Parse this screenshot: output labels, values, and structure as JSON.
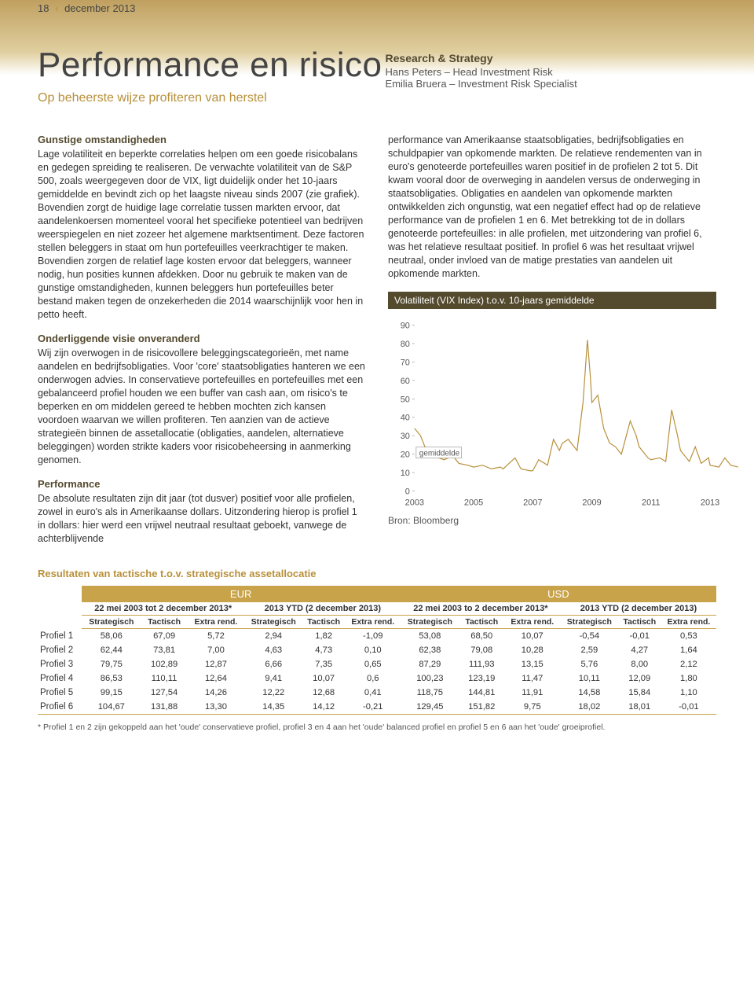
{
  "page_tag": {
    "num": "18",
    "date": "december 2013"
  },
  "header": {
    "title": "Performance en risico",
    "subtitle": "Op beheerste wijze profiteren van herstel",
    "rs_label": "Research & Strategy",
    "author1": "Hans Peters – Head Investment Risk",
    "author2": "Emilia Bruera – Investment Risk Specialist"
  },
  "left": {
    "h1": "Gunstige omstandigheden",
    "p1": "Lage volatiliteit en beperkte correlaties helpen om een goede risicobalans en gedegen spreiding te realiseren. De verwachte volatiliteit van de S&P 500, zoals weergegeven door de VIX, ligt duidelijk onder het 10-jaars gemiddelde en bevindt zich op het laagste niveau sinds 2007 (zie grafiek). Bovendien zorgt de huidige lage correlatie tussen markten ervoor, dat aandelenkoersen momenteel vooral het specifieke potentieel van bedrijven weerspiegelen en niet zozeer het algemene marktsentiment. Deze factoren stellen beleggers in staat om hun portefeuilles veerkrachtiger te maken. Bovendien zorgen de relatief lage kosten ervoor dat beleggers, wanneer nodig, hun posities kunnen afdekken. Door nu gebruik te maken van de gunstige omstandigheden, kunnen beleggers hun portefeuilles beter bestand maken tegen de onzekerheden die 2014 waarschijnlijk voor hen in petto heeft.",
    "h2": "Onderliggende visie onveranderd",
    "p2": "Wij zijn overwogen in de risicovollere beleggingscategorieën, met name aandelen en bedrijfsobligaties. Voor 'core' staatsobligaties hanteren we een onderwogen advies. In conservatieve portefeuilles en portefeuilles met een gebalanceerd profiel houden we een buffer van cash aan, om risico's te beperken en om middelen gereed te hebben mochten zich kansen voordoen waarvan we willen profiteren. Ten aanzien van de actieve strategieën binnen de assetallocatie (obligaties, aandelen, alternatieve beleggingen) worden strikte kaders voor risicobeheersing in aanmerking genomen.",
    "h3": "Performance",
    "p3": "De absolute resultaten zijn dit jaar (tot dusver) positief voor alle profielen, zowel in euro's als in Amerikaanse dollars. Uitzondering hierop is profiel 1 in dollars: hier werd een vrijwel neutraal resultaat geboekt, vanwege de achterblijvende"
  },
  "right": {
    "p1": "performance van Amerikaanse staatsobligaties, bedrijfsobligaties en schuldpapier van opkomende markten. De relatieve rendementen van in euro's genoteerde portefeuilles waren positief in de profielen 2 tot 5. Dit kwam vooral door de overweging in aandelen versus de onderweging in staatsobligaties. Obligaties en aandelen van opkomende markten ontwikkelden zich ongunstig, wat een negatief effect had op de relatieve performance van de profielen 1 en 6. Met betrekking tot de in dollars genoteerde portefeuilles: in alle profielen, met uitzondering van profiel 6, was het relatieve resultaat positief. In profiel 6 was het resultaat vrijwel neutraal, onder invloed van de matige prestaties van aandelen uit opkomende markten."
  },
  "chart": {
    "title": "Volatiliteit (VIX Index) t.o.v. 10-jaars gemiddelde",
    "ylim": [
      0,
      90
    ],
    "ytick_step": 10,
    "xticks": [
      "2003",
      "2005",
      "2007",
      "2009",
      "2011",
      "2013"
    ],
    "x_range": [
      2003,
      2013
    ],
    "avg_label": "gemiddelde",
    "avg_value": 20,
    "line_color": "#b8903a",
    "background_color": "#ffffff",
    "source": "Bron: Bloomberg",
    "series": [
      {
        "x": 2003.0,
        "y": 34
      },
      {
        "x": 2003.2,
        "y": 30
      },
      {
        "x": 2003.4,
        "y": 22
      },
      {
        "x": 2003.6,
        "y": 20
      },
      {
        "x": 2003.8,
        "y": 18
      },
      {
        "x": 2004.0,
        "y": 17
      },
      {
        "x": 2004.3,
        "y": 19
      },
      {
        "x": 2004.5,
        "y": 15
      },
      {
        "x": 2004.8,
        "y": 14
      },
      {
        "x": 2005.0,
        "y": 13
      },
      {
        "x": 2005.3,
        "y": 14
      },
      {
        "x": 2005.6,
        "y": 12
      },
      {
        "x": 2005.9,
        "y": 13
      },
      {
        "x": 2006.0,
        "y": 12
      },
      {
        "x": 2006.4,
        "y": 18
      },
      {
        "x": 2006.6,
        "y": 12
      },
      {
        "x": 2006.9,
        "y": 11
      },
      {
        "x": 2007.0,
        "y": 11
      },
      {
        "x": 2007.2,
        "y": 17
      },
      {
        "x": 2007.5,
        "y": 14
      },
      {
        "x": 2007.7,
        "y": 28
      },
      {
        "x": 2007.9,
        "y": 22
      },
      {
        "x": 2008.0,
        "y": 26
      },
      {
        "x": 2008.2,
        "y": 28
      },
      {
        "x": 2008.5,
        "y": 22
      },
      {
        "x": 2008.7,
        "y": 48
      },
      {
        "x": 2008.85,
        "y": 82
      },
      {
        "x": 2008.95,
        "y": 62
      },
      {
        "x": 2009.0,
        "y": 48
      },
      {
        "x": 2009.2,
        "y": 52
      },
      {
        "x": 2009.4,
        "y": 34
      },
      {
        "x": 2009.6,
        "y": 26
      },
      {
        "x": 2009.8,
        "y": 24
      },
      {
        "x": 2010.0,
        "y": 20
      },
      {
        "x": 2010.3,
        "y": 38
      },
      {
        "x": 2010.5,
        "y": 30
      },
      {
        "x": 2010.6,
        "y": 24
      },
      {
        "x": 2010.9,
        "y": 18
      },
      {
        "x": 2011.0,
        "y": 17
      },
      {
        "x": 2011.3,
        "y": 18
      },
      {
        "x": 2011.5,
        "y": 16
      },
      {
        "x": 2011.7,
        "y": 44
      },
      {
        "x": 2011.9,
        "y": 30
      },
      {
        "x": 2012.0,
        "y": 22
      },
      {
        "x": 2012.3,
        "y": 16
      },
      {
        "x": 2012.5,
        "y": 24
      },
      {
        "x": 2012.7,
        "y": 15
      },
      {
        "x": 2012.95,
        "y": 18
      },
      {
        "x": 2013.0,
        "y": 14
      },
      {
        "x": 2013.3,
        "y": 13
      },
      {
        "x": 2013.5,
        "y": 18
      },
      {
        "x": 2013.7,
        "y": 14
      },
      {
        "x": 2013.95,
        "y": 13
      }
    ]
  },
  "table": {
    "title": "Resultaten van tactische t.o.v. strategische assetallocatie",
    "group_heads": [
      "EUR",
      "USD"
    ],
    "sub_heads": [
      "22 mei 2003 tot 2 december 2013*",
      "2013 YTD (2 december 2013)",
      "22 mei 2003 to 2 december 2013*",
      "2013 YTD (2 december 2013)"
    ],
    "col_heads": [
      "Strategisch",
      "Tactisch",
      "Extra rend."
    ],
    "rows": [
      {
        "label": "Profiel 1",
        "cells": [
          "58,06",
          "67,09",
          "5,72",
          "2,94",
          "1,82",
          "-1,09",
          "53,08",
          "68,50",
          "10,07",
          "-0,54",
          "-0,01",
          "0,53"
        ]
      },
      {
        "label": "Profiel 2",
        "cells": [
          "62,44",
          "73,81",
          "7,00",
          "4,63",
          "4,73",
          "0,10",
          "62,38",
          "79,08",
          "10,28",
          "2,59",
          "4,27",
          "1,64"
        ]
      },
      {
        "label": "Profiel 3",
        "cells": [
          "79,75",
          "102,89",
          "12,87",
          "6,66",
          "7,35",
          "0,65",
          "87,29",
          "111,93",
          "13,15",
          "5,76",
          "8,00",
          "2,12"
        ]
      },
      {
        "label": "Profiel 4",
        "cells": [
          "86,53",
          "110,11",
          "12,64",
          "9,41",
          "10,07",
          "0,6",
          "100,23",
          "123,19",
          "11,47",
          "10,11",
          "12,09",
          "1,80"
        ]
      },
      {
        "label": "Profiel 5",
        "cells": [
          "99,15",
          "127,54",
          "14,26",
          "12,22",
          "12,68",
          "0,41",
          "118,75",
          "144,81",
          "11,91",
          "14,58",
          "15,84",
          "1,10"
        ]
      },
      {
        "label": "Profiel 6",
        "cells": [
          "104,67",
          "131,88",
          "13,30",
          "14,35",
          "14,12",
          "-0,21",
          "129,45",
          "151,82",
          "9,75",
          "18,02",
          "18,01",
          "-0,01"
        ]
      }
    ],
    "footnote": "* Profiel 1 en 2 zijn gekoppeld aan het 'oude' conservatieve profiel, profiel 3 en 4 aan het 'oude' balanced profiel en profiel 5 en 6 aan het 'oude' groeiprofiel."
  }
}
